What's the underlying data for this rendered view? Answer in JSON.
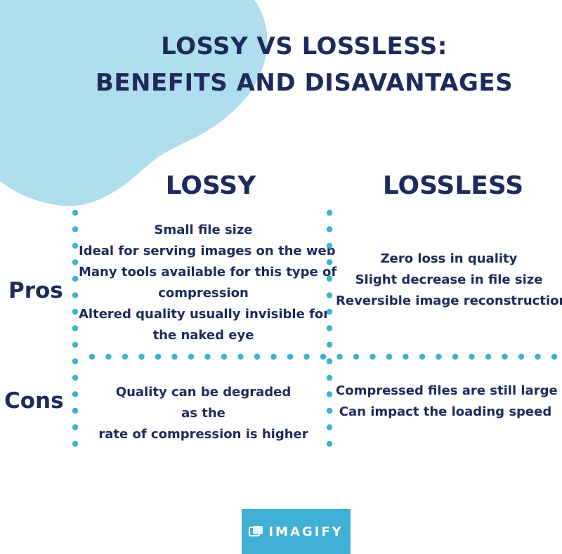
{
  "title": {
    "line1": "LOSSY VS LOSSLESS:",
    "line2": "BENEFITS AND DISAVANTAGES"
  },
  "columns": {
    "lossy": "LOSSY",
    "lossless": "LOSSLESS"
  },
  "rows": {
    "pros": "Pros",
    "cons": "Cons"
  },
  "cells": {
    "pros_lossy": [
      "Small file size",
      "Ideal for serving images on the web",
      "Many tools available for this type of",
      "compression",
      "Altered quality usually invisible for",
      "the naked eye"
    ],
    "pros_lossless": [
      "Zero loss in quality",
      "Slight decrease in file size",
      "Reversible image reconstruction"
    ],
    "cons_lossy": [
      "Quality can be degraded",
      "as the",
      "rate of compression is higher"
    ],
    "cons_lossless": [
      "Compressed files are still large",
      "Can impact the loading speed"
    ]
  },
  "logo": {
    "text": "IMAGIFY"
  },
  "colors": {
    "navy": "#1d2a5b",
    "blob": "#aedeed",
    "dots": "#3fb0d4",
    "logo_bg": "#3fb0d4"
  }
}
